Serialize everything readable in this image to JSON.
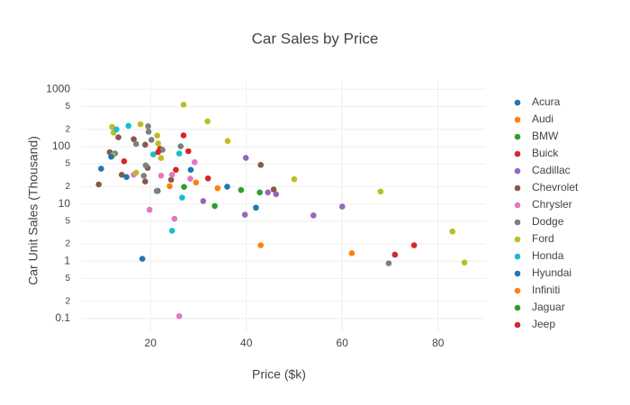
{
  "chart_data": {
    "type": "scatter",
    "title": "Car Sales by Price",
    "x_label": "Price ($k)",
    "y_label": "Car Unit Sales (Thousand)",
    "xlim": [
      5.5,
      90
    ],
    "xticks": [
      20,
      40,
      60,
      80
    ],
    "ylim": [
      0.06,
      1400
    ],
    "log_y": true,
    "grid": true,
    "legend": "right",
    "yticks": [
      0.1,
      {
        "value": 0.2,
        "label": "2"
      },
      {
        "value": 0.5,
        "label": "5"
      },
      1,
      {
        "value": 2,
        "label": "2"
      },
      {
        "value": 5,
        "label": "5"
      },
      10,
      {
        "value": 20,
        "label": "2"
      },
      {
        "value": 50,
        "label": "5"
      },
      100,
      {
        "value": 200,
        "label": "2"
      },
      {
        "value": 500,
        "label": "5"
      },
      1000
    ],
    "series": [
      {
        "name": "Acura",
        "color": "#1f77b4",
        "x": [
          21.5,
          28.4,
          42,
          36
        ],
        "values": [
          16.9,
          39.4,
          8.6,
          20
        ]
      },
      {
        "name": "Audi",
        "color": "#ff7f0e",
        "x": [
          24,
          34,
          62
        ],
        "values": [
          20.4,
          18.8,
          1.38
        ]
      },
      {
        "name": "BMW",
        "color": "#2ca02c",
        "x": [
          27,
          33.4,
          38.9
        ],
        "values": [
          19.8,
          9.2,
          17.5
        ]
      },
      {
        "name": "Buick",
        "color": "#d62728",
        "x": [
          22,
          25.3,
          32,
          27.9
        ],
        "values": [
          91.6,
          39.4,
          27.9,
          83.3
        ]
      },
      {
        "name": "Cadillac",
        "color": "#9467bd",
        "x": [
          39.9,
          44.5,
          39.7,
          31,
          46.2,
          60,
          54
        ],
        "values": [
          63.7,
          15.9,
          6.5,
          11.2,
          14.8,
          9,
          6.3
        ]
      },
      {
        "name": "Chevrolet",
        "color": "#8c564b",
        "x": [
          13.3,
          16.5,
          18.9,
          19.4,
          24.3,
          45.7,
          14,
          9.2,
          18.9,
          11.5,
          43
        ],
        "values": [
          145.5,
          135.1,
          24.6,
          42.6,
          26.4,
          17.9,
          32.3,
          21.9,
          108,
          80,
          48
        ]
      },
      {
        "name": "Chrysler",
        "color": "#e377c2",
        "x": [
          19.8,
          24.5,
          22.2,
          16.5,
          28.3,
          29.2,
          26,
          25
        ],
        "values": [
          7.9,
          32.3,
          31.1,
          32.3,
          27.6,
          53.5,
          0.11,
          5.5
        ]
      },
      {
        "name": "Dodge",
        "color": "#7f7f7f",
        "x": [
          12.6,
          19,
          20.2,
          22.5,
          69.7,
          19.5,
          21.3,
          18.6,
          17,
          26.3,
          19.6
        ],
        "values": [
          76,
          47.1,
          131.1,
          88,
          0.92,
          227.1,
          16.8,
          31,
          111.3,
          101.3,
          181.7
        ]
      },
      {
        "name": "Ford",
        "color": "#bcbd22",
        "x": [
          12.1,
          21.6,
          17,
          17.9,
          12.3,
          22.2,
          31.9,
          21.4,
          36.1,
          12,
          26.9,
          50,
          68,
          83,
          85.5
        ],
        "values": [
          70.2,
          113.4,
          35.1,
          245.8,
          175.7,
          63.4,
          276.7,
          155.8,
          125.3,
          220.6,
          540.6,
          27,
          16.5,
          3.3,
          0.95
        ]
      },
      {
        "name": "Honda",
        "color": "#17becf",
        "x": [
          12.9,
          15.4,
          20.6,
          26.6,
          26,
          24.5
        ],
        "values": [
          199.7,
          230.9,
          73.2,
          12.9,
          76,
          3.4
        ]
      },
      {
        "name": "Hyundai",
        "color": "#1f77b4",
        "x": [
          9.7,
          11.8,
          15,
          18.3
        ],
        "values": [
          41.2,
          66.7,
          29.5,
          1.1
        ]
      },
      {
        "name": "Infiniti",
        "color": "#ff7f0e",
        "x": [
          29.5,
          43
        ],
        "values": [
          23.7,
          1.9
        ]
      },
      {
        "name": "Jaguar",
        "color": "#2ca02c",
        "x": [
          42.8
        ],
        "values": [
          15.9
        ]
      },
      {
        "name": "Jeep",
        "color": "#d62728",
        "x": [
          14.5,
          21.6,
          26.9,
          75,
          71
        ],
        "values": [
          55.6,
          80.6,
          157,
          1.9,
          1.3
        ]
      }
    ]
  }
}
